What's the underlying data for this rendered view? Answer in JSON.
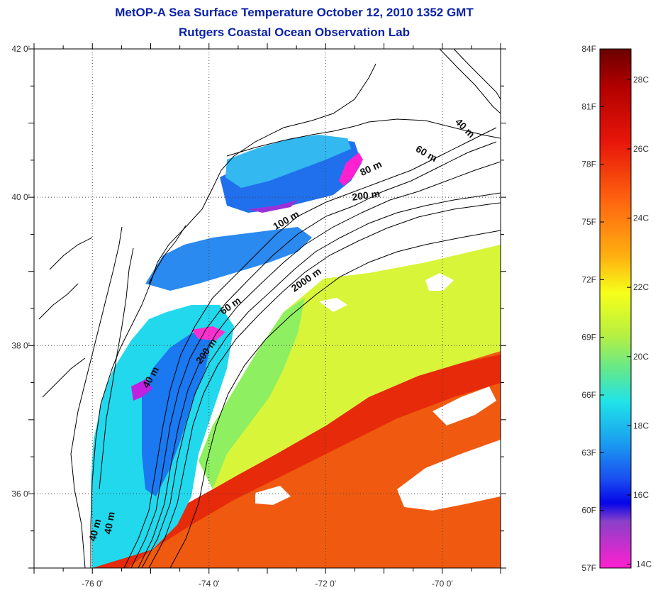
{
  "title": "MetOP-A Sea Surface Temperature October 12, 2010 1352 GMT",
  "subtitle": "Rutgers Coastal Ocean Observation Lab",
  "map": {
    "lon_range": [
      -77,
      -69
    ],
    "lat_range": [
      35,
      42
    ],
    "lon_ticks": [
      {
        "lon": -76,
        "label": "-76 0'"
      },
      {
        "lon": -74,
        "label": "-74 0'"
      },
      {
        "lon": -72,
        "label": "-72 0'"
      },
      {
        "lon": -70,
        "label": "-70 0'"
      }
    ],
    "lat_ticks": [
      {
        "lat": 42,
        "label": "42 0'"
      },
      {
        "lat": 40,
        "label": "40 0'"
      },
      {
        "lat": 38,
        "label": "38 0'"
      },
      {
        "lat": 36,
        "label": "36 0'"
      }
    ],
    "depth_labels": [
      {
        "text": "40 m",
        "lon": -69.65,
        "lat": 40.9,
        "angle": 45
      },
      {
        "text": "60 m",
        "lon": -70.3,
        "lat": 40.55,
        "angle": 30
      },
      {
        "text": "80 m",
        "lon": -71.2,
        "lat": 40.35,
        "angle": -25
      },
      {
        "text": "200 m",
        "lon": -71.3,
        "lat": 39.98,
        "angle": -8
      },
      {
        "text": "100 m",
        "lon": -72.65,
        "lat": 39.65,
        "angle": -30
      },
      {
        "text": "2000 m",
        "lon": -72.3,
        "lat": 38.85,
        "angle": -35
      },
      {
        "text": "60 m",
        "lon": -73.6,
        "lat": 38.5,
        "angle": -35
      },
      {
        "text": "200 m",
        "lon": -74.0,
        "lat": 37.9,
        "angle": -55
      },
      {
        "text": "40 m",
        "lon": -74.95,
        "lat": 37.55,
        "angle": -60
      },
      {
        "text": "40 m",
        "lon": -75.9,
        "lat": 35.5,
        "angle": -75
      },
      {
        "text": "40 m",
        "lon": -75.65,
        "lat": 35.6,
        "angle": -80
      }
    ]
  },
  "colorbar": {
    "fahrenheit_labels": [
      "84F",
      "81F",
      "78F",
      "75F",
      "72F",
      "69F",
      "66F",
      "63F",
      "60F",
      "57F"
    ],
    "celsius_labels": [
      "28C",
      "26C",
      "24C",
      "22C",
      "20C",
      "18C",
      "16C",
      "14C"
    ],
    "colors": {
      "hot": "#7a0000",
      "red": "#e8160a",
      "orange": "#ff7a10",
      "yellow": "#f6ff1a",
      "green": "#9af25a",
      "cyan": "#20e3e8",
      "blue": "#1a4cf0",
      "deep_blue": "#0505e8",
      "purple": "#8a40c8",
      "magenta": "#ff20d0"
    }
  }
}
